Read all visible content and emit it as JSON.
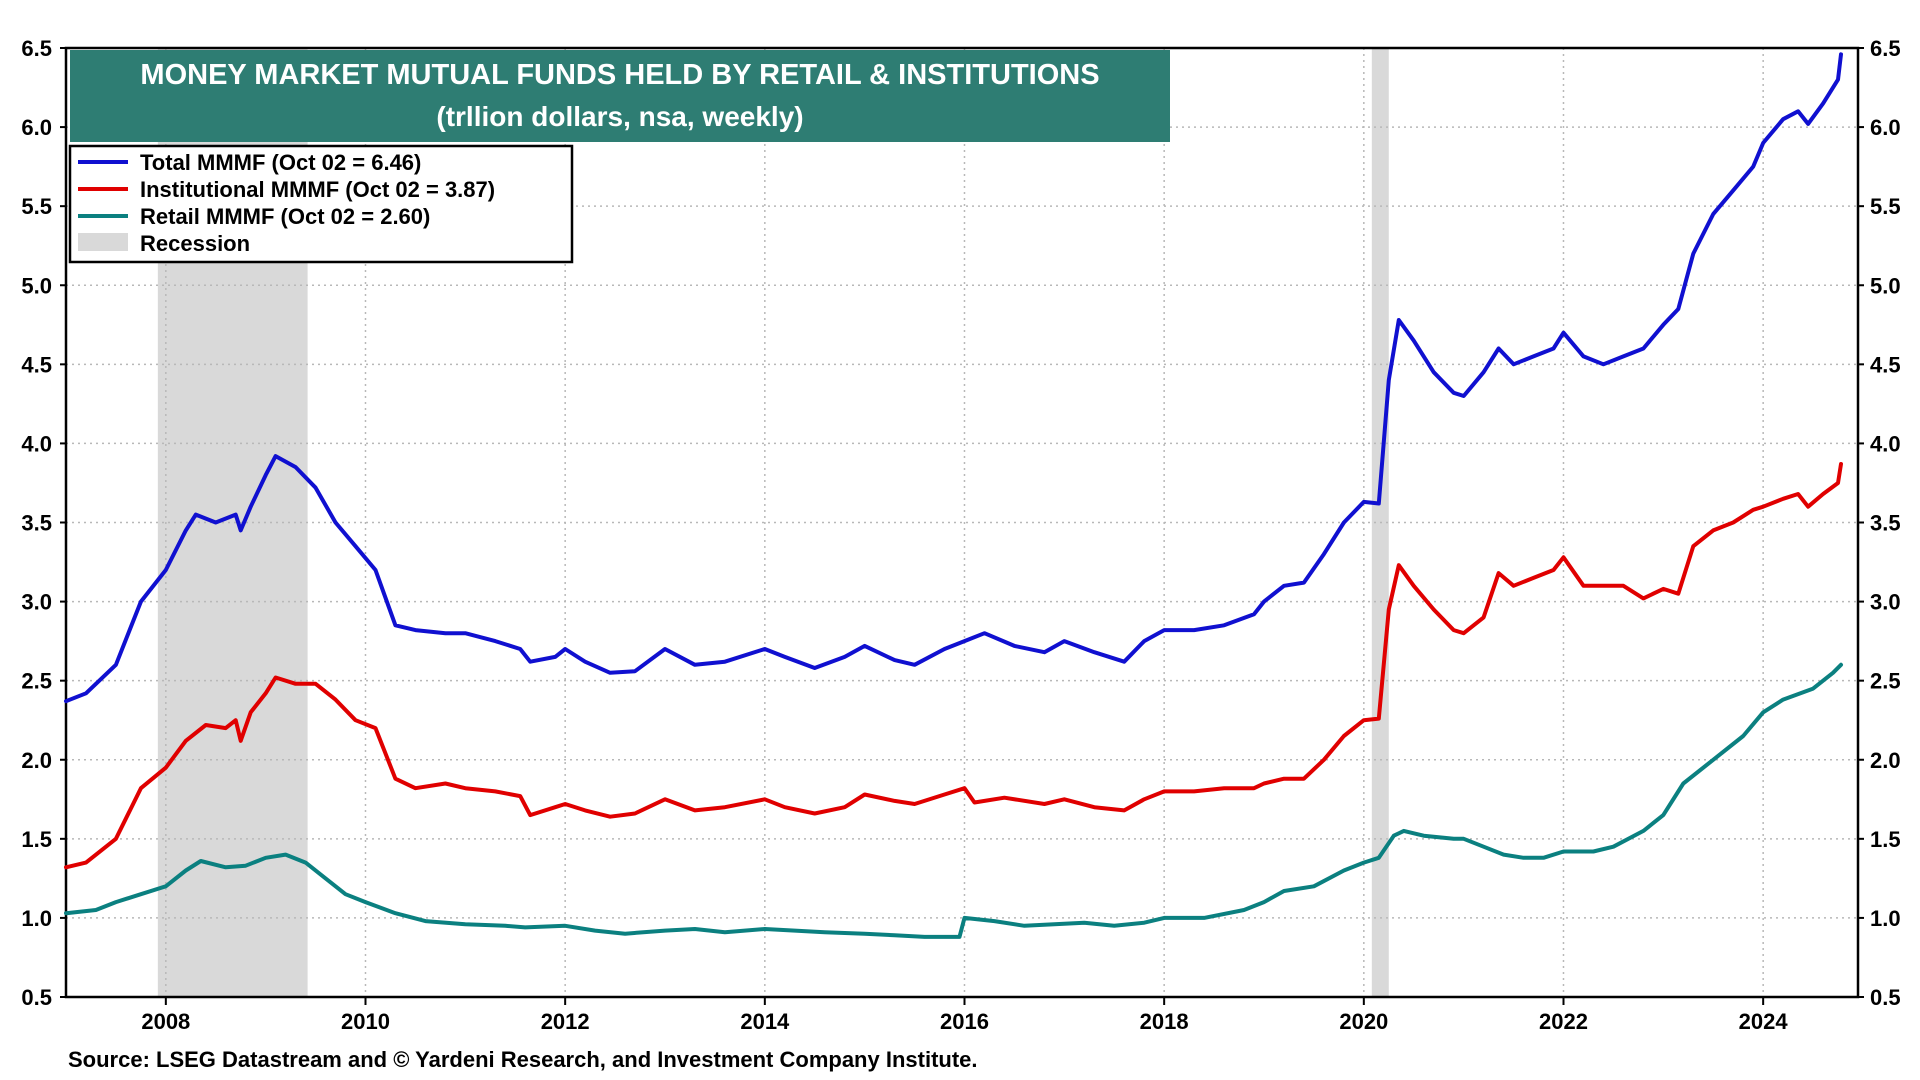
{
  "chart_data": {
    "type": "line",
    "title": "MONEY MARKET MUTUAL FUNDS HELD BY RETAIL & INSTITUTIONS",
    "subtitle": "(trllion dollars, nsa, weekly)",
    "xlabel": "",
    "ylabel": "",
    "xlim": [
      2007.0,
      2024.95
    ],
    "ylim": [
      0.5,
      6.5
    ],
    "y_ticks": [
      "0.5",
      "1.0",
      "1.5",
      "2.0",
      "2.5",
      "3.0",
      "3.5",
      "4.0",
      "4.5",
      "5.0",
      "5.5",
      "6.0",
      "6.5"
    ],
    "x_ticks": [
      "2008",
      "2010",
      "2012",
      "2014",
      "2016",
      "2018",
      "2020",
      "2022",
      "2024"
    ],
    "recessions": [
      [
        2007.92,
        2009.42
      ],
      [
        2020.08,
        2020.25
      ]
    ],
    "legend": {
      "position": "top-left",
      "recession_label": "Recession"
    },
    "series": [
      {
        "name": "Total MMMF (Oct 02 = 6.46)",
        "color": "#1010d0",
        "points": [
          [
            2007.0,
            2.37
          ],
          [
            2007.2,
            2.42
          ],
          [
            2007.5,
            2.6
          ],
          [
            2007.75,
            3.0
          ],
          [
            2008.0,
            3.2
          ],
          [
            2008.2,
            3.45
          ],
          [
            2008.3,
            3.55
          ],
          [
            2008.5,
            3.5
          ],
          [
            2008.7,
            3.55
          ],
          [
            2008.75,
            3.45
          ],
          [
            2008.85,
            3.6
          ],
          [
            2009.0,
            3.8
          ],
          [
            2009.1,
            3.92
          ],
          [
            2009.3,
            3.85
          ],
          [
            2009.5,
            3.72
          ],
          [
            2009.7,
            3.5
          ],
          [
            2009.9,
            3.35
          ],
          [
            2010.1,
            3.2
          ],
          [
            2010.3,
            2.85
          ],
          [
            2010.5,
            2.82
          ],
          [
            2010.8,
            2.8
          ],
          [
            2011.0,
            2.8
          ],
          [
            2011.3,
            2.75
          ],
          [
            2011.55,
            2.7
          ],
          [
            2011.65,
            2.62
          ],
          [
            2011.9,
            2.65
          ],
          [
            2012.0,
            2.7
          ],
          [
            2012.2,
            2.62
          ],
          [
            2012.45,
            2.55
          ],
          [
            2012.7,
            2.56
          ],
          [
            2013.0,
            2.7
          ],
          [
            2013.3,
            2.6
          ],
          [
            2013.6,
            2.62
          ],
          [
            2014.0,
            2.7
          ],
          [
            2014.2,
            2.65
          ],
          [
            2014.5,
            2.58
          ],
          [
            2014.8,
            2.65
          ],
          [
            2015.0,
            2.72
          ],
          [
            2015.3,
            2.63
          ],
          [
            2015.5,
            2.6
          ],
          [
            2015.8,
            2.7
          ],
          [
            2016.0,
            2.75
          ],
          [
            2016.2,
            2.8
          ],
          [
            2016.5,
            2.72
          ],
          [
            2016.8,
            2.68
          ],
          [
            2017.0,
            2.75
          ],
          [
            2017.3,
            2.68
          ],
          [
            2017.6,
            2.62
          ],
          [
            2017.8,
            2.75
          ],
          [
            2018.0,
            2.82
          ],
          [
            2018.3,
            2.82
          ],
          [
            2018.6,
            2.85
          ],
          [
            2018.9,
            2.92
          ],
          [
            2019.0,
            3.0
          ],
          [
            2019.2,
            3.1
          ],
          [
            2019.4,
            3.12
          ],
          [
            2019.6,
            3.3
          ],
          [
            2019.8,
            3.5
          ],
          [
            2020.0,
            3.63
          ],
          [
            2020.15,
            3.62
          ],
          [
            2020.25,
            4.4
          ],
          [
            2020.35,
            4.78
          ],
          [
            2020.5,
            4.65
          ],
          [
            2020.7,
            4.45
          ],
          [
            2020.9,
            4.32
          ],
          [
            2021.0,
            4.3
          ],
          [
            2021.2,
            4.45
          ],
          [
            2021.35,
            4.6
          ],
          [
            2021.5,
            4.5
          ],
          [
            2021.7,
            4.55
          ],
          [
            2021.9,
            4.6
          ],
          [
            2022.0,
            4.7
          ],
          [
            2022.2,
            4.55
          ],
          [
            2022.4,
            4.5
          ],
          [
            2022.6,
            4.55
          ],
          [
            2022.8,
            4.6
          ],
          [
            2023.0,
            4.75
          ],
          [
            2023.15,
            4.85
          ],
          [
            2023.3,
            5.2
          ],
          [
            2023.5,
            5.45
          ],
          [
            2023.7,
            5.6
          ],
          [
            2023.9,
            5.75
          ],
          [
            2024.0,
            5.9
          ],
          [
            2024.2,
            6.05
          ],
          [
            2024.35,
            6.1
          ],
          [
            2024.45,
            6.02
          ],
          [
            2024.6,
            6.15
          ],
          [
            2024.75,
            6.3
          ],
          [
            2024.78,
            6.46
          ]
        ]
      },
      {
        "name": "Institutional MMMF  (Oct 02 = 3.87)",
        "color": "#e00000",
        "points": [
          [
            2007.0,
            1.32
          ],
          [
            2007.2,
            1.35
          ],
          [
            2007.5,
            1.5
          ],
          [
            2007.75,
            1.82
          ],
          [
            2008.0,
            1.95
          ],
          [
            2008.2,
            2.12
          ],
          [
            2008.4,
            2.22
          ],
          [
            2008.6,
            2.2
          ],
          [
            2008.7,
            2.25
          ],
          [
            2008.75,
            2.12
          ],
          [
            2008.85,
            2.3
          ],
          [
            2009.0,
            2.42
          ],
          [
            2009.1,
            2.52
          ],
          [
            2009.3,
            2.48
          ],
          [
            2009.5,
            2.48
          ],
          [
            2009.7,
            2.38
          ],
          [
            2009.9,
            2.25
          ],
          [
            2010.1,
            2.2
          ],
          [
            2010.3,
            1.88
          ],
          [
            2010.5,
            1.82
          ],
          [
            2010.8,
            1.85
          ],
          [
            2011.0,
            1.82
          ],
          [
            2011.3,
            1.8
          ],
          [
            2011.55,
            1.77
          ],
          [
            2011.65,
            1.65
          ],
          [
            2011.9,
            1.7
          ],
          [
            2012.0,
            1.72
          ],
          [
            2012.2,
            1.68
          ],
          [
            2012.45,
            1.64
          ],
          [
            2012.7,
            1.66
          ],
          [
            2013.0,
            1.75
          ],
          [
            2013.3,
            1.68
          ],
          [
            2013.6,
            1.7
          ],
          [
            2014.0,
            1.75
          ],
          [
            2014.2,
            1.7
          ],
          [
            2014.5,
            1.66
          ],
          [
            2014.8,
            1.7
          ],
          [
            2015.0,
            1.78
          ],
          [
            2015.3,
            1.74
          ],
          [
            2015.5,
            1.72
          ],
          [
            2015.8,
            1.78
          ],
          [
            2016.0,
            1.82
          ],
          [
            2016.1,
            1.73
          ],
          [
            2016.4,
            1.76
          ],
          [
            2016.8,
            1.72
          ],
          [
            2017.0,
            1.75
          ],
          [
            2017.3,
            1.7
          ],
          [
            2017.6,
            1.68
          ],
          [
            2017.8,
            1.75
          ],
          [
            2018.0,
            1.8
          ],
          [
            2018.3,
            1.8
          ],
          [
            2018.6,
            1.82
          ],
          [
            2018.9,
            1.82
          ],
          [
            2019.0,
            1.85
          ],
          [
            2019.2,
            1.88
          ],
          [
            2019.4,
            1.88
          ],
          [
            2019.6,
            2.0
          ],
          [
            2019.8,
            2.15
          ],
          [
            2020.0,
            2.25
          ],
          [
            2020.15,
            2.26
          ],
          [
            2020.25,
            2.95
          ],
          [
            2020.35,
            3.23
          ],
          [
            2020.5,
            3.1
          ],
          [
            2020.7,
            2.95
          ],
          [
            2020.9,
            2.82
          ],
          [
            2021.0,
            2.8
          ],
          [
            2021.2,
            2.9
          ],
          [
            2021.35,
            3.18
          ],
          [
            2021.5,
            3.1
          ],
          [
            2021.7,
            3.15
          ],
          [
            2021.9,
            3.2
          ],
          [
            2022.0,
            3.28
          ],
          [
            2022.2,
            3.1
          ],
          [
            2022.4,
            3.1
          ],
          [
            2022.6,
            3.1
          ],
          [
            2022.8,
            3.02
          ],
          [
            2023.0,
            3.08
          ],
          [
            2023.15,
            3.05
          ],
          [
            2023.3,
            3.35
          ],
          [
            2023.5,
            3.45
          ],
          [
            2023.7,
            3.5
          ],
          [
            2023.9,
            3.58
          ],
          [
            2024.0,
            3.6
          ],
          [
            2024.2,
            3.65
          ],
          [
            2024.35,
            3.68
          ],
          [
            2024.45,
            3.6
          ],
          [
            2024.6,
            3.68
          ],
          [
            2024.75,
            3.75
          ],
          [
            2024.78,
            3.87
          ]
        ]
      },
      {
        "name": "Retail MMMF (Oct 02 = 2.60)",
        "color": "#0b8080",
        "points": [
          [
            2007.0,
            1.03
          ],
          [
            2007.3,
            1.05
          ],
          [
            2007.5,
            1.1
          ],
          [
            2007.75,
            1.15
          ],
          [
            2008.0,
            1.2
          ],
          [
            2008.2,
            1.3
          ],
          [
            2008.35,
            1.36
          ],
          [
            2008.6,
            1.32
          ],
          [
            2008.8,
            1.33
          ],
          [
            2009.0,
            1.38
          ],
          [
            2009.2,
            1.4
          ],
          [
            2009.4,
            1.35
          ],
          [
            2009.6,
            1.25
          ],
          [
            2009.8,
            1.15
          ],
          [
            2010.0,
            1.1
          ],
          [
            2010.3,
            1.03
          ],
          [
            2010.6,
            0.98
          ],
          [
            2011.0,
            0.96
          ],
          [
            2011.4,
            0.95
          ],
          [
            2011.6,
            0.94
          ],
          [
            2012.0,
            0.95
          ],
          [
            2012.3,
            0.92
          ],
          [
            2012.6,
            0.9
          ],
          [
            2013.0,
            0.92
          ],
          [
            2013.3,
            0.93
          ],
          [
            2013.6,
            0.91
          ],
          [
            2014.0,
            0.93
          ],
          [
            2014.3,
            0.92
          ],
          [
            2014.6,
            0.91
          ],
          [
            2015.0,
            0.9
          ],
          [
            2015.3,
            0.89
          ],
          [
            2015.6,
            0.88
          ],
          [
            2015.95,
            0.88
          ],
          [
            2016.0,
            1.0
          ],
          [
            2016.3,
            0.98
          ],
          [
            2016.6,
            0.95
          ],
          [
            2016.9,
            0.96
          ],
          [
            2017.2,
            0.97
          ],
          [
            2017.5,
            0.95
          ],
          [
            2017.8,
            0.97
          ],
          [
            2018.0,
            1.0
          ],
          [
            2018.4,
            1.0
          ],
          [
            2018.8,
            1.05
          ],
          [
            2019.0,
            1.1
          ],
          [
            2019.2,
            1.17
          ],
          [
            2019.5,
            1.2
          ],
          [
            2019.8,
            1.3
          ],
          [
            2020.0,
            1.35
          ],
          [
            2020.15,
            1.38
          ],
          [
            2020.3,
            1.52
          ],
          [
            2020.4,
            1.55
          ],
          [
            2020.6,
            1.52
          ],
          [
            2020.9,
            1.5
          ],
          [
            2021.0,
            1.5
          ],
          [
            2021.2,
            1.45
          ],
          [
            2021.4,
            1.4
          ],
          [
            2021.6,
            1.38
          ],
          [
            2021.8,
            1.38
          ],
          [
            2022.0,
            1.42
          ],
          [
            2022.3,
            1.42
          ],
          [
            2022.5,
            1.45
          ],
          [
            2022.8,
            1.55
          ],
          [
            2023.0,
            1.65
          ],
          [
            2023.2,
            1.85
          ],
          [
            2023.5,
            2.0
          ],
          [
            2023.8,
            2.15
          ],
          [
            2024.0,
            2.3
          ],
          [
            2024.2,
            2.38
          ],
          [
            2024.5,
            2.45
          ],
          [
            2024.7,
            2.55
          ],
          [
            2024.78,
            2.6
          ]
        ]
      }
    ]
  },
  "source": "Source: LSEG Datastream and © Yardeni Research, and Investment Company Institute."
}
